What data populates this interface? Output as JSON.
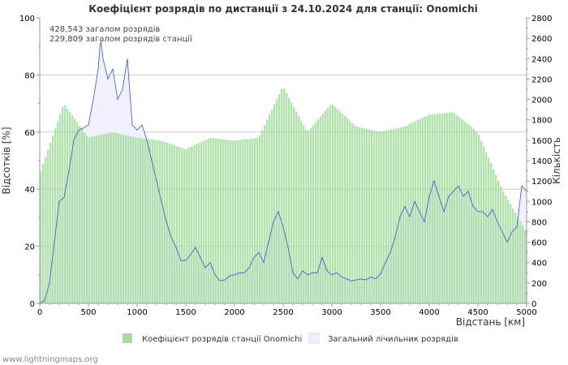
{
  "chart_data": {
    "type": "bar+area",
    "title": "Коефіцієнт розрядів по дистанції з 24.10.2024 для станції: Onomichi",
    "xlabel": "Відстань   [км]",
    "ylabel_left": "Відсотків   [%]",
    "ylabel_right": "Кількість",
    "xlim": [
      0,
      5000
    ],
    "ylim_left": [
      0,
      100
    ],
    "ylim_right": [
      0,
      2800
    ],
    "x_ticks": [
      "0",
      "500",
      "1000",
      "1500",
      "2000",
      "2500",
      "3000",
      "3500",
      "4000",
      "4500",
      "5000"
    ],
    "y_left_ticks": [
      "0",
      "20",
      "40",
      "60",
      "80",
      "100"
    ],
    "y_right_ticks": [
      "0",
      "200",
      "400",
      "600",
      "800",
      "1000",
      "1200",
      "1400",
      "1600",
      "1800",
      "2000",
      "2200",
      "2400",
      "2600",
      "2800"
    ],
    "gridlines_y": [
      20,
      40,
      60,
      80
    ],
    "annotations": [
      "428,543 загалом розрядів",
      "229,809 загалом розрядів станції"
    ],
    "series": [
      {
        "name": "Коефіцієнт розрядів станції Onomichi",
        "kind": "bar",
        "axis": "left",
        "color": "#a6dca0",
        "x": [
          0,
          250,
          500,
          750,
          1000,
          1250,
          1500,
          1750,
          2000,
          2250,
          2500,
          2750,
          3000,
          3250,
          3500,
          3750,
          4000,
          4250,
          4500,
          4750,
          5000
        ],
        "values": [
          45,
          70,
          58,
          60,
          58,
          57,
          54,
          58,
          57,
          58,
          76,
          60,
          70,
          62,
          60,
          62,
          66,
          67,
          60,
          40,
          25
        ]
      },
      {
        "name": "Загальний лічильник розрядів",
        "kind": "area",
        "axis": "right",
        "color": "#f0f0ff",
        "line_color": "#3355cc",
        "x": [
          0,
          50,
          100,
          150,
          200,
          250,
          300,
          350,
          400,
          450,
          500,
          550,
          600,
          625,
          650,
          700,
          750,
          800,
          850,
          900,
          950,
          1000,
          1050,
          1100,
          1150,
          1200,
          1250,
          1300,
          1350,
          1400,
          1450,
          1500,
          1550,
          1600,
          1650,
          1700,
          1750,
          1800,
          1850,
          1900,
          1950,
          2000,
          2050,
          2100,
          2150,
          2200,
          2250,
          2300,
          2350,
          2400,
          2450,
          2500,
          2550,
          2600,
          2650,
          2700,
          2750,
          2800,
          2850,
          2900,
          2950,
          3000,
          3050,
          3100,
          3150,
          3200,
          3250,
          3300,
          3350,
          3400,
          3450,
          3500,
          3550,
          3600,
          3650,
          3700,
          3750,
          3800,
          3850,
          3900,
          3950,
          4000,
          4050,
          4100,
          4150,
          4200,
          4250,
          4300,
          4350,
          4400,
          4450,
          4500,
          4550,
          4600,
          4650,
          4700,
          4750,
          4800,
          4850,
          4900,
          4950,
          5000
        ],
        "values": [
          0,
          30,
          200,
          600,
          1000,
          1040,
          1300,
          1600,
          1700,
          1720,
          1750,
          2000,
          2300,
          2600,
          2400,
          2200,
          2300,
          2000,
          2100,
          2400,
          1750,
          1700,
          1750,
          1600,
          1400,
          1200,
          1000,
          800,
          650,
          550,
          420,
          420,
          480,
          550,
          450,
          350,
          400,
          280,
          220,
          230,
          270,
          280,
          300,
          300,
          350,
          450,
          500,
          400,
          600,
          800,
          900,
          750,
          550,
          300,
          240,
          320,
          280,
          300,
          300,
          450,
          320,
          280,
          300,
          260,
          240,
          220,
          230,
          240,
          230,
          260,
          240,
          290,
          400,
          500,
          650,
          850,
          950,
          850,
          1000,
          900,
          800,
          1050,
          1200,
          1050,
          900,
          1050,
          1100,
          1150,
          1050,
          1100,
          950,
          900,
          900,
          850,
          920,
          800,
          700,
          600,
          700,
          750,
          1150,
          1100
        ]
      }
    ]
  },
  "legend": {
    "bar_label": "Коефіцієнт розрядів станції Onomichi",
    "area_label": "Загальний лічильник розрядів"
  },
  "credit": "www.lightningmaps.org"
}
